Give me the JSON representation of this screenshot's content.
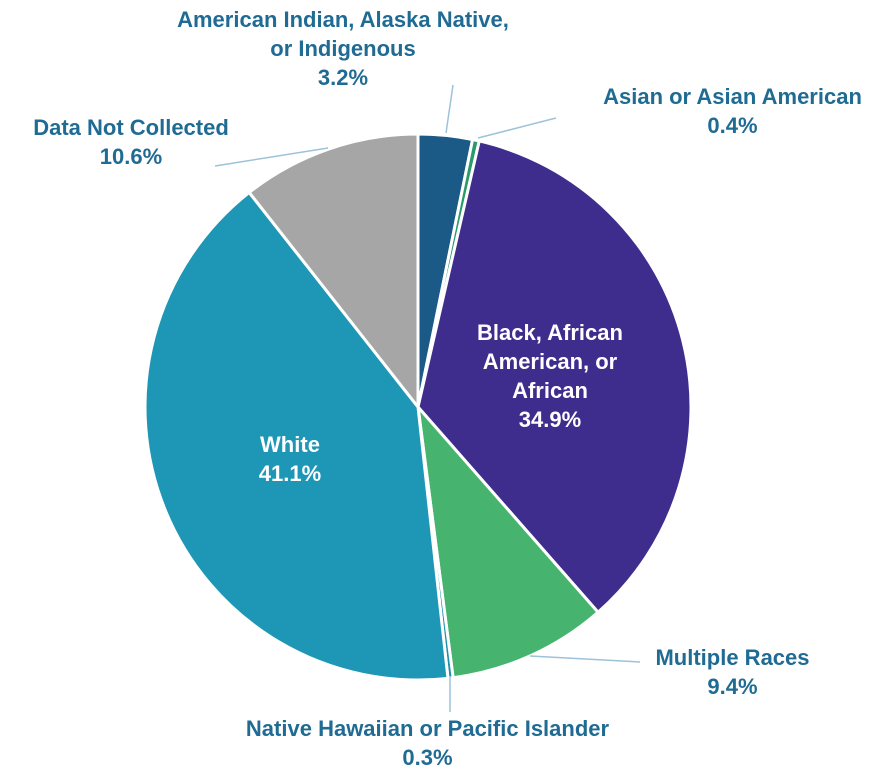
{
  "chart_data": {
    "type": "pie",
    "categories": [
      "American Indian, Alaska Native, or Indigenous",
      "Asian or Asian American",
      "Black, African American, or African",
      "Multiple Races",
      "Native Hawaiian or Pacific Islander",
      "White",
      "Data Not Collected"
    ],
    "values": [
      3.2,
      0.4,
      34.9,
      9.4,
      0.3,
      41.1,
      10.6
    ],
    "value_labels": [
      "3.2%",
      "0.4%",
      "34.9%",
      "9.4%",
      "0.3%",
      "41.1%",
      "10.6%"
    ],
    "colors": [
      "#1b5a87",
      "#2a9a6a",
      "#3f2d8e",
      "#46b46e",
      "#1e8fae",
      "#1d97b5",
      "#a6a6a6"
    ]
  }
}
